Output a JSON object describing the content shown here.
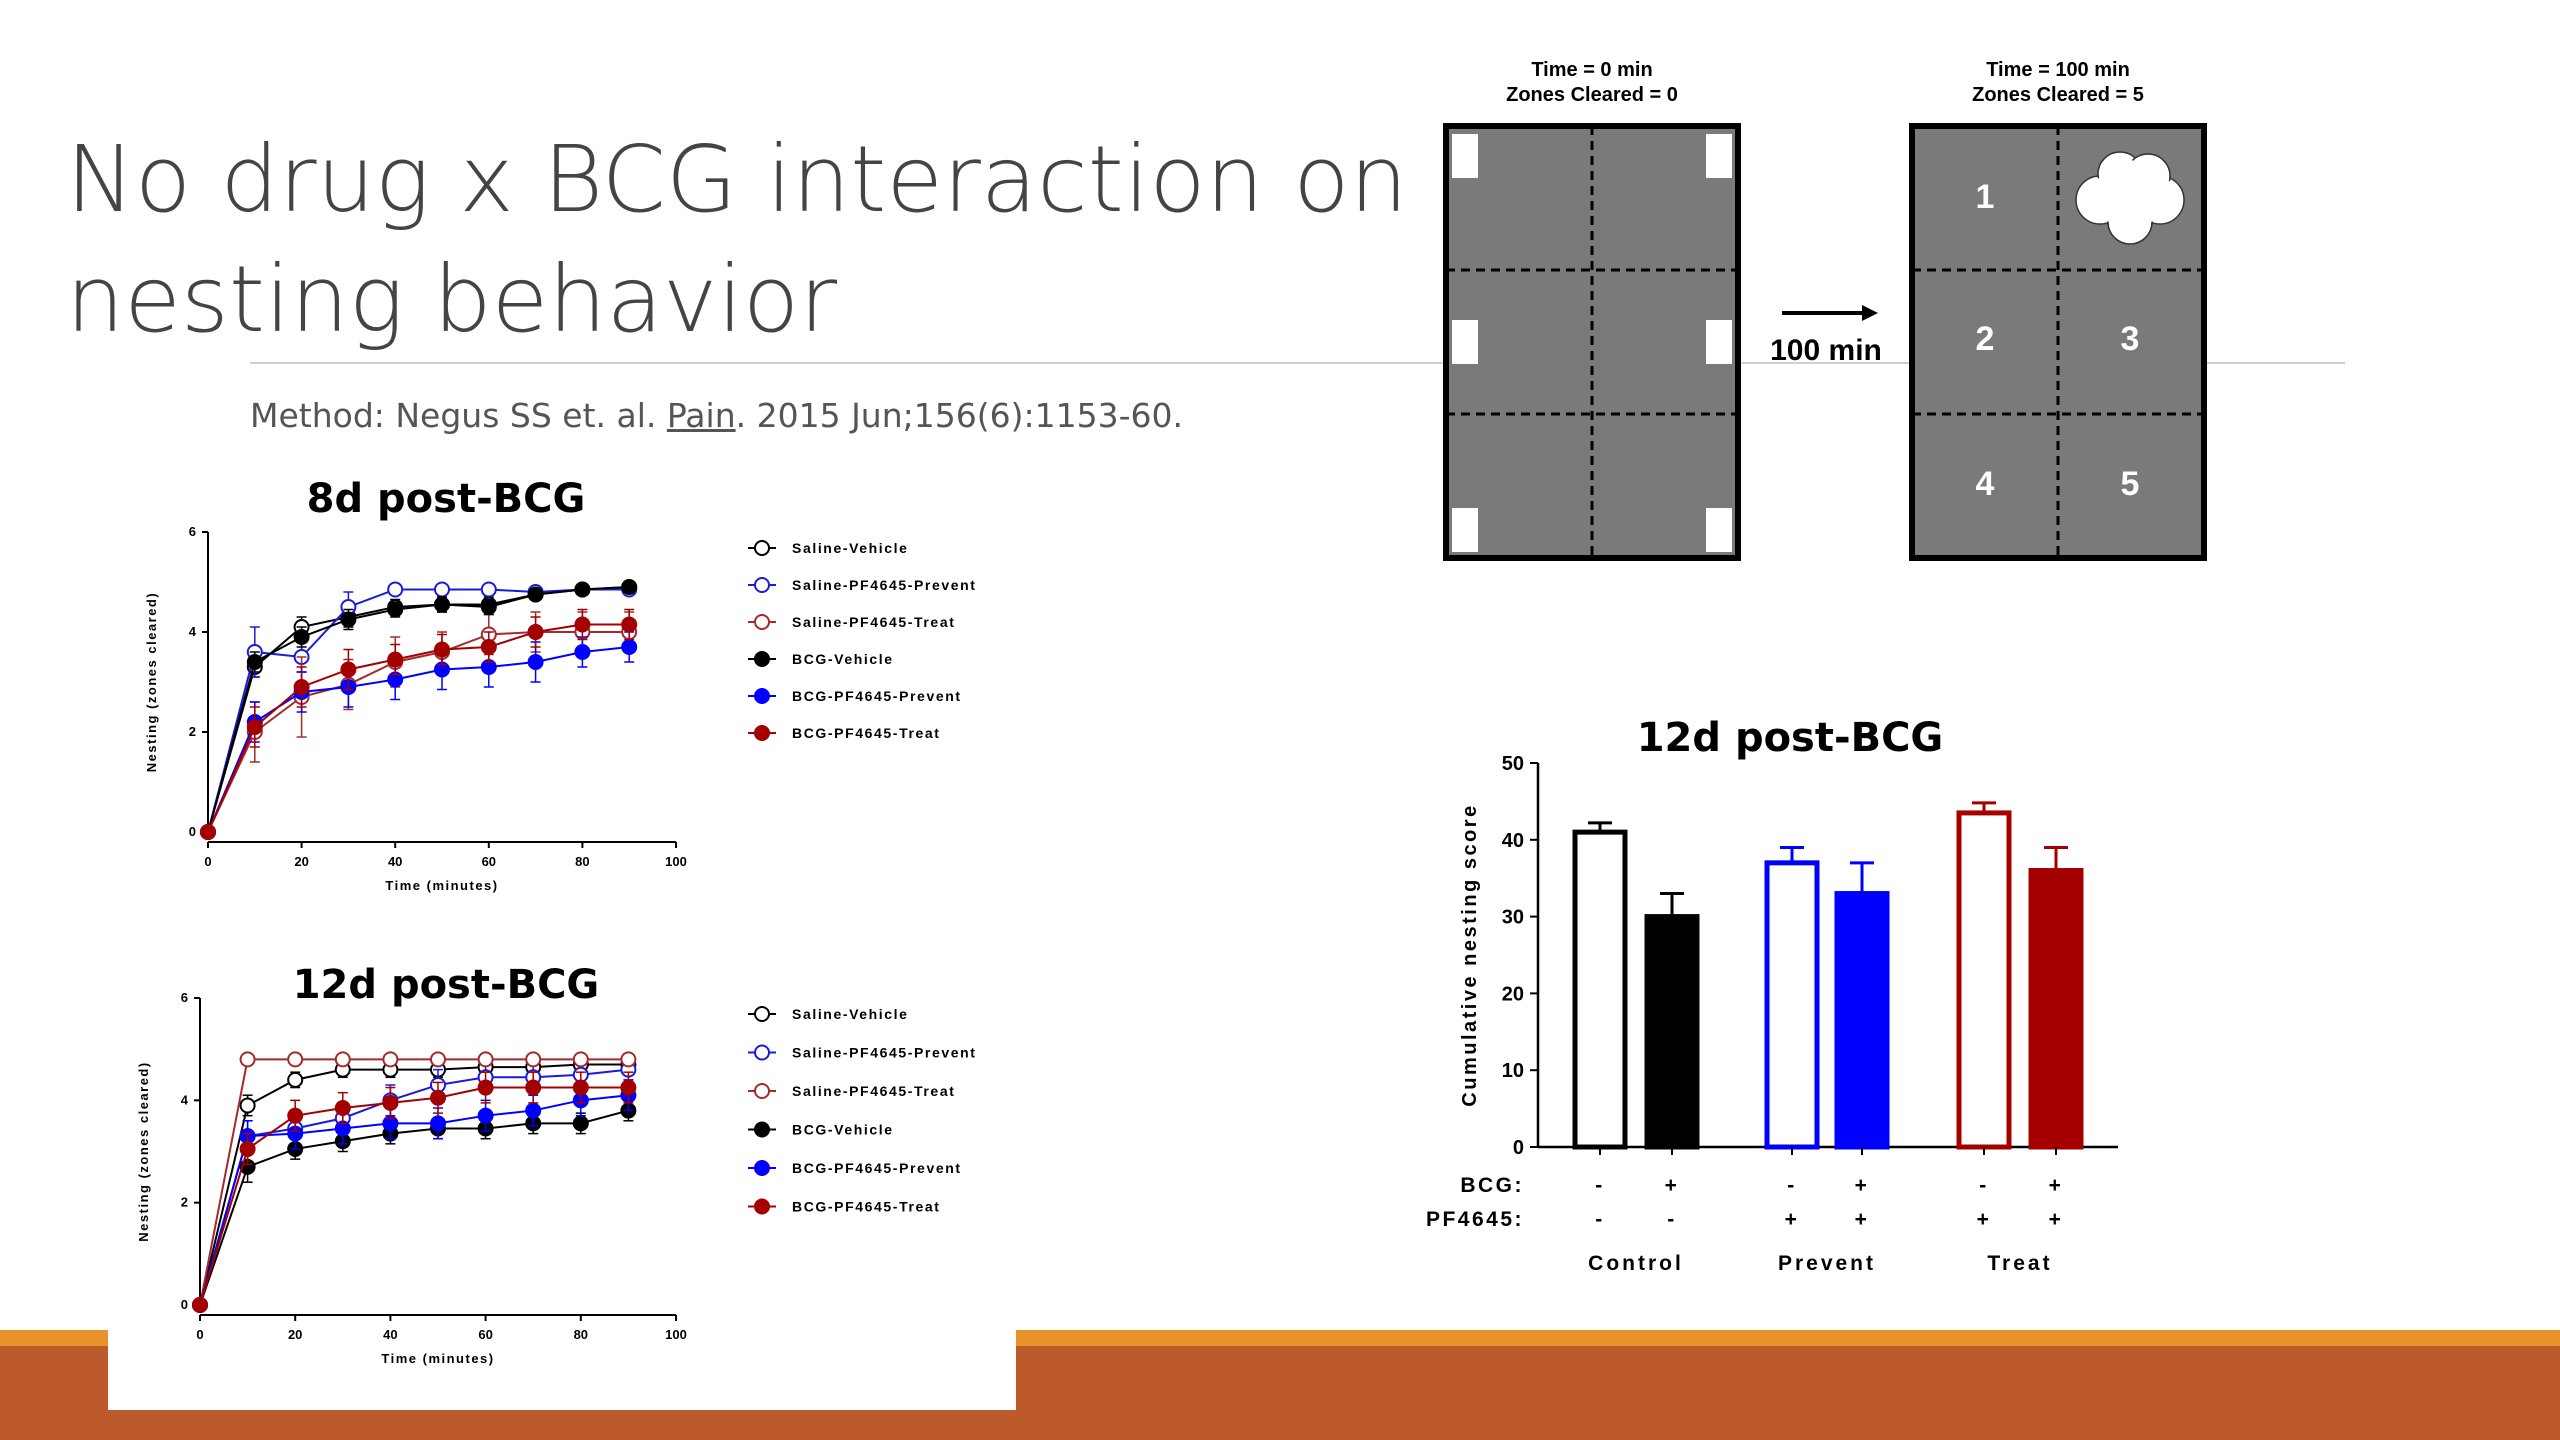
{
  "slide": {
    "title_line1": "No drug x BCG interaction on",
    "title_line2": "nesting behavior",
    "citation_pre": "Method: Negus SS et. al. ",
    "citation_journal": "Pain",
    "citation_post": ". 2015 Jun;156(6):1153-60."
  },
  "diagram": {
    "left_label1": "Time = 0 min",
    "left_label2": "Zones Cleared = 0",
    "right_label1": "Time = 100 min",
    "right_label2": "Zones Cleared = 5",
    "arrow_label": "100 min",
    "zones": [
      "1",
      "2",
      "3",
      "4",
      "5"
    ]
  },
  "colors": {
    "saline_vehicle": "#000000",
    "saline_prevent": "#1a1adb",
    "saline_treat": "#a52a2a",
    "bcg_vehicle": "#000000",
    "bcg_prevent": "#0000ff",
    "bcg_treat": "#a50000",
    "footer_bar": "#bd5a2b",
    "footer_accent": "#e8922a"
  },
  "chart_data": [
    {
      "type": "line",
      "title": "8d post-BCG",
      "xlabel": "Time (minutes)",
      "ylabel": "Nesting (zones cleared)",
      "xlim": [
        0,
        100
      ],
      "ylim": [
        0,
        6
      ],
      "xticks": [
        0,
        20,
        40,
        60,
        80,
        100
      ],
      "yticks": [
        0,
        2,
        4,
        6
      ],
      "legend_position": "right",
      "x": [
        0,
        10,
        20,
        30,
        40,
        50,
        60,
        70,
        80,
        90
      ],
      "series": [
        {
          "name": "Saline-Vehicle",
          "color": "#000000",
          "filled": false,
          "values": [
            0,
            3.3,
            4.1,
            4.3,
            4.5,
            4.55,
            4.55,
            4.75,
            4.85,
            4.9
          ],
          "err": [
            0,
            0.2,
            0.2,
            0.2,
            0.15,
            0.15,
            0.15,
            0.1,
            0.1,
            0.1
          ]
        },
        {
          "name": "Saline-PF4645-Prevent",
          "color": "#1a1adb",
          "filled": false,
          "values": [
            0,
            3.6,
            3.5,
            4.5,
            4.85,
            4.85,
            4.85,
            4.8,
            4.85,
            4.85
          ],
          "err": [
            0,
            0.5,
            0.3,
            0.3,
            0.1,
            0.1,
            0.1,
            0.1,
            0.1,
            0.1
          ]
        },
        {
          "name": "Saline-PF4645-Treat",
          "color": "#a52a2a",
          "filled": false,
          "values": [
            0,
            2.0,
            2.7,
            2.95,
            3.4,
            3.6,
            3.95,
            4.0,
            4.0,
            4.0
          ],
          "err": [
            0,
            0.6,
            0.8,
            0.5,
            0.5,
            0.4,
            0.4,
            0.4,
            0.4,
            0.4
          ]
        },
        {
          "name": "BCG-Vehicle",
          "color": "#000000",
          "filled": true,
          "values": [
            0,
            3.4,
            3.9,
            4.25,
            4.45,
            4.55,
            4.5,
            4.75,
            4.85,
            4.9
          ],
          "err": [
            0,
            0.2,
            0.2,
            0.2,
            0.15,
            0.15,
            0.15,
            0.1,
            0.1,
            0.1
          ]
        },
        {
          "name": "BCG-PF4645-Prevent",
          "color": "#0000ff",
          "filled": true,
          "values": [
            0,
            2.2,
            2.8,
            2.9,
            3.05,
            3.25,
            3.3,
            3.4,
            3.6,
            3.7
          ],
          "err": [
            0,
            0.4,
            0.4,
            0.4,
            0.4,
            0.4,
            0.4,
            0.4,
            0.3,
            0.3
          ]
        },
        {
          "name": "BCG-PF4645-Treat",
          "color": "#a50000",
          "filled": true,
          "values": [
            0,
            2.1,
            2.9,
            3.25,
            3.45,
            3.65,
            3.7,
            4.0,
            4.15,
            4.15
          ],
          "err": [
            0,
            0.4,
            0.4,
            0.4,
            0.3,
            0.3,
            0.3,
            0.3,
            0.3,
            0.3
          ]
        }
      ]
    },
    {
      "type": "line",
      "title": "12d post-BCG",
      "xlabel": "Time (minutes)",
      "ylabel": "Nesting (zones cleared)",
      "xlim": [
        0,
        100
      ],
      "ylim": [
        0,
        6
      ],
      "xticks": [
        0,
        20,
        40,
        60,
        80,
        100
      ],
      "yticks": [
        0,
        2,
        4,
        6
      ],
      "legend_position": "right",
      "x": [
        0,
        10,
        20,
        30,
        40,
        50,
        60,
        70,
        80,
        90
      ],
      "series": [
        {
          "name": "Saline-Vehicle",
          "color": "#000000",
          "filled": false,
          "values": [
            0,
            3.9,
            4.4,
            4.6,
            4.6,
            4.6,
            4.65,
            4.65,
            4.7,
            4.7
          ],
          "err": [
            0,
            0.2,
            0.15,
            0.15,
            0.15,
            0.15,
            0.15,
            0.15,
            0.15,
            0.15
          ]
        },
        {
          "name": "Saline-PF4645-Prevent",
          "color": "#1a1adb",
          "filled": false,
          "values": [
            0,
            3.3,
            3.45,
            3.65,
            4.0,
            4.3,
            4.45,
            4.45,
            4.5,
            4.6
          ],
          "err": [
            0,
            0.3,
            0.3,
            0.3,
            0.3,
            0.3,
            0.3,
            0.3,
            0.3,
            0.3
          ]
        },
        {
          "name": "Saline-PF4645-Treat",
          "color": "#a52a2a",
          "filled": false,
          "values": [
            0,
            4.8,
            4.8,
            4.8,
            4.8,
            4.8,
            4.8,
            4.8,
            4.8,
            4.8
          ],
          "err": [
            0,
            0.1,
            0.1,
            0.1,
            0.1,
            0.1,
            0.1,
            0.1,
            0.1,
            0.1
          ]
        },
        {
          "name": "BCG-Vehicle",
          "color": "#000000",
          "filled": true,
          "values": [
            0,
            2.7,
            3.05,
            3.2,
            3.35,
            3.45,
            3.45,
            3.55,
            3.55,
            3.8
          ],
          "err": [
            0,
            0.3,
            0.2,
            0.2,
            0.2,
            0.2,
            0.2,
            0.2,
            0.2,
            0.2
          ]
        },
        {
          "name": "BCG-PF4645-Prevent",
          "color": "#0000ff",
          "filled": true,
          "values": [
            0,
            3.3,
            3.35,
            3.45,
            3.55,
            3.55,
            3.7,
            3.8,
            4.0,
            4.1
          ],
          "err": [
            0,
            0.3,
            0.3,
            0.3,
            0.3,
            0.3,
            0.3,
            0.3,
            0.3,
            0.3
          ]
        },
        {
          "name": "BCG-PF4645-Treat",
          "color": "#a50000",
          "filled": true,
          "values": [
            0,
            3.05,
            3.7,
            3.85,
            3.95,
            4.05,
            4.25,
            4.25,
            4.25,
            4.25
          ],
          "err": [
            0,
            0.3,
            0.3,
            0.3,
            0.3,
            0.3,
            0.3,
            0.3,
            0.3,
            0.3
          ]
        }
      ]
    },
    {
      "type": "bar",
      "title": "12d post-BCG",
      "ylabel": "Cumulative nesting score",
      "ylim": [
        0,
        50
      ],
      "yticks": [
        0,
        10,
        20,
        30,
        40,
        50
      ],
      "row_labels": {
        "bcg": "BCG:",
        "pf": "PF4645:"
      },
      "groups": [
        "Control",
        "Prevent",
        "Treat"
      ],
      "bars": [
        {
          "group": "Control",
          "bcg": "-",
          "pf": "-",
          "value": 41,
          "err": 1.2,
          "color": "#000000",
          "filled": false
        },
        {
          "group": "Control",
          "bcg": "+",
          "pf": "-",
          "value": 30,
          "err": 3.0,
          "color": "#000000",
          "filled": true
        },
        {
          "group": "Prevent",
          "bcg": "-",
          "pf": "+",
          "value": 37,
          "err": 2.0,
          "color": "#0000ff",
          "filled": false
        },
        {
          "group": "Prevent",
          "bcg": "+",
          "pf": "+",
          "value": 33,
          "err": 4.0,
          "color": "#0000ff",
          "filled": true
        },
        {
          "group": "Treat",
          "bcg": "-",
          "pf": "+",
          "value": 43.5,
          "err": 1.3,
          "color": "#a50000",
          "filled": false
        },
        {
          "group": "Treat",
          "bcg": "+",
          "pf": "+",
          "value": 36,
          "err": 3.0,
          "color": "#a50000",
          "filled": true
        }
      ]
    }
  ]
}
